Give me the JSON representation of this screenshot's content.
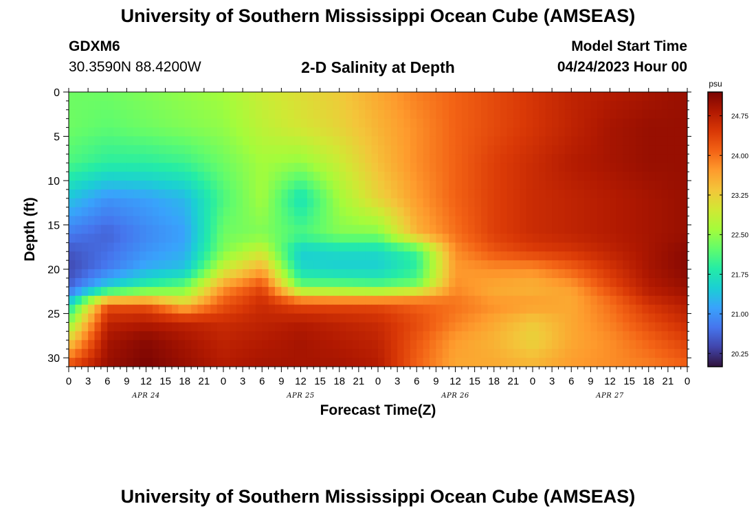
{
  "header": {
    "title": "University of Southern Mississippi Ocean Cube (AMSEAS)",
    "station": "GDXM6",
    "location": "30.3590N  88.4200W",
    "subtitle": "2-D Salinity at Depth",
    "model_start_label": "Model Start Time",
    "model_start_value": "04/24/2023 Hour 00"
  },
  "footer": {
    "title": "University of Southern Mississippi Ocean Cube (AMSEAS)"
  },
  "chart_data": {
    "type": "heatmap",
    "title": "2-D Salinity at Depth",
    "xlabel": "Forecast Time(Z)",
    "ylabel": "Depth (ft)",
    "x_range_hours": [
      0,
      96
    ],
    "x_tick_step_hours": 3,
    "x_tick_labels": [
      "0",
      "3",
      "6",
      "9",
      "12",
      "15",
      "18",
      "21",
      "0",
      "3",
      "6",
      "9",
      "12",
      "15",
      "18",
      "21",
      "0",
      "3",
      "6",
      "9",
      "12",
      "15",
      "18",
      "21",
      "0",
      "3",
      "6",
      "9",
      "12",
      "15",
      "18",
      "21",
      "0"
    ],
    "day_labels": [
      {
        "hour": 12,
        "label": "APR 24"
      },
      {
        "hour": 36,
        "label": "APR 25"
      },
      {
        "hour": 60,
        "label": "APR 26"
      },
      {
        "hour": 84,
        "label": "APR 27"
      }
    ],
    "y_range": [
      0,
      31
    ],
    "y_ticks": [
      0,
      5,
      10,
      15,
      20,
      25,
      30
    ],
    "colorbar": {
      "units": "psu",
      "range": [
        20.0,
        25.2
      ],
      "ticks": [
        24.75,
        24.0,
        23.25,
        22.5,
        21.75,
        21.0,
        20.25
      ],
      "tick_labels": [
        "24.75",
        "24.00",
        "23.25",
        "22.50",
        "21.75",
        "21.00",
        "20.25"
      ],
      "colors": [
        "#30123b",
        "#4145ab",
        "#4675ed",
        "#39a2fc",
        "#1bcfd4",
        "#24eca6",
        "#61fc6c",
        "#a4fc3b",
        "#d1e834",
        "#f3c63a",
        "#fe9b2d",
        "#f36315",
        "#d93806",
        "#b11901",
        "#7a0402"
      ]
    },
    "field": {
      "description": "Estimated salinity (psu) sampled on a coarse time x depth grid",
      "times_hours": [
        0,
        6,
        12,
        18,
        24,
        30,
        36,
        42,
        48,
        54,
        60,
        66,
        72,
        78,
        84,
        90,
        96
      ],
      "depths_ft": [
        0,
        4,
        8,
        12,
        16,
        18,
        20,
        22,
        23,
        24,
        26,
        28,
        31
      ],
      "values": [
        [
          22.3,
          22.3,
          22.4,
          22.5,
          22.6,
          22.9,
          23.1,
          23.3,
          23.6,
          23.9,
          24.1,
          24.3,
          24.5,
          24.7,
          24.8,
          24.9,
          25.0
        ],
        [
          22.3,
          22.2,
          22.3,
          22.4,
          22.5,
          22.8,
          23.0,
          23.2,
          23.5,
          23.8,
          24.1,
          24.3,
          24.5,
          24.7,
          24.9,
          25.0,
          25.0
        ],
        [
          22.1,
          21.9,
          21.9,
          22.0,
          22.3,
          22.6,
          22.5,
          22.9,
          23.4,
          23.8,
          24.1,
          24.4,
          24.6,
          24.8,
          24.9,
          25.0,
          25.0
        ],
        [
          21.4,
          21.0,
          21.1,
          21.3,
          22.1,
          22.6,
          21.7,
          22.6,
          23.2,
          23.7,
          24.1,
          24.4,
          24.6,
          24.7,
          24.8,
          24.9,
          25.0
        ],
        [
          20.8,
          20.6,
          20.9,
          21.1,
          22.3,
          22.4,
          22.1,
          22.4,
          22.4,
          23.5,
          24.0,
          24.4,
          24.6,
          24.7,
          24.8,
          24.9,
          25.0
        ],
        [
          20.5,
          20.7,
          21.0,
          21.2,
          22.4,
          22.9,
          21.5,
          21.6,
          21.6,
          22.0,
          23.8,
          24.2,
          24.4,
          24.5,
          24.7,
          24.9,
          25.1
        ],
        [
          20.4,
          20.8,
          21.2,
          21.4,
          22.9,
          23.6,
          21.6,
          21.5,
          21.5,
          21.9,
          23.7,
          23.8,
          23.8,
          24.1,
          24.5,
          24.9,
          25.1
        ],
        [
          20.6,
          21.5,
          22.0,
          22.3,
          23.7,
          24.3,
          22.3,
          22.3,
          22.2,
          22.4,
          23.8,
          23.6,
          23.5,
          23.7,
          24.3,
          24.8,
          25.0
        ],
        [
          21.0,
          22.7,
          22.9,
          22.7,
          24.0,
          24.5,
          23.4,
          23.3,
          23.3,
          23.6,
          23.9,
          23.6,
          23.6,
          23.6,
          24.1,
          24.7,
          24.9
        ],
        [
          21.6,
          24.2,
          24.2,
          23.4,
          24.2,
          24.6,
          24.3,
          24.3,
          24.3,
          24.1,
          24.0,
          23.8,
          23.7,
          23.6,
          24.0,
          24.5,
          24.8
        ],
        [
          22.4,
          24.7,
          24.8,
          24.7,
          24.6,
          24.7,
          24.8,
          24.7,
          24.6,
          24.3,
          23.9,
          23.6,
          23.3,
          23.6,
          23.9,
          24.3,
          24.6
        ],
        [
          23.2,
          24.9,
          25.1,
          24.9,
          24.7,
          24.8,
          24.9,
          24.8,
          24.7,
          24.2,
          23.7,
          23.5,
          23.2,
          23.6,
          23.8,
          24.1,
          24.4
        ],
        [
          24.3,
          25.0,
          25.2,
          25.0,
          24.8,
          24.9,
          24.9,
          24.9,
          24.8,
          24.1,
          23.6,
          23.6,
          23.5,
          23.7,
          23.8,
          23.9,
          24.1
        ]
      ]
    }
  }
}
